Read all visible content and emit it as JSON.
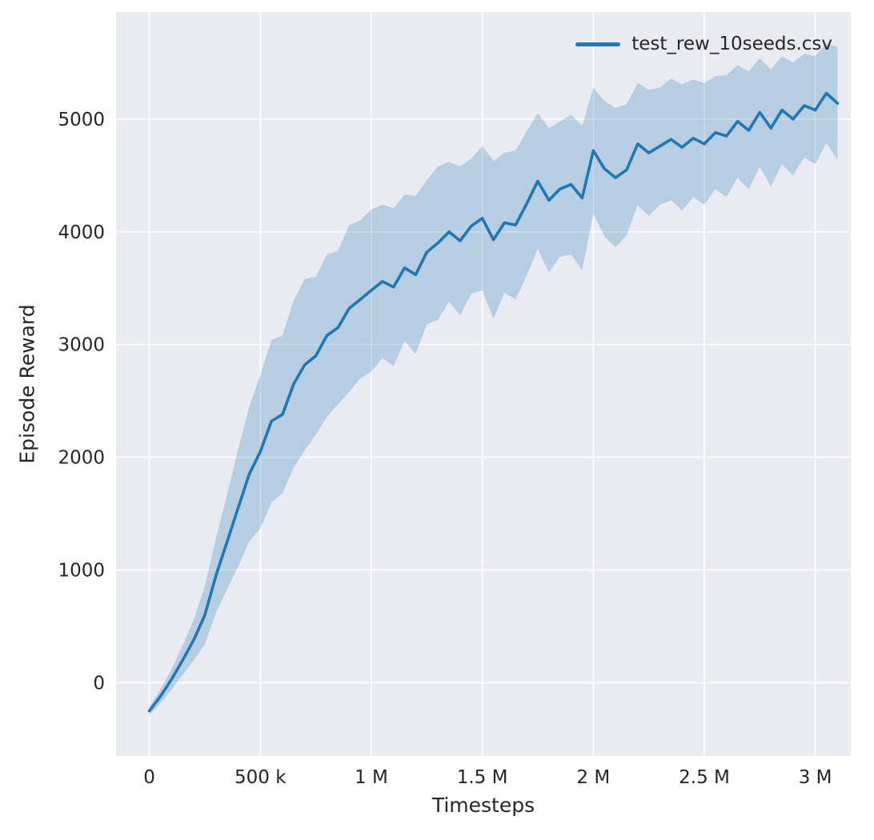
{
  "chart_data": {
    "type": "line",
    "title": "",
    "xlabel": "Timesteps",
    "ylabel": "Episode Reward",
    "grid": true,
    "legend_position": "upper right",
    "xlim": [
      -150000,
      3160000
    ],
    "ylim": [
      -650,
      5950
    ],
    "x_ticks": [
      0,
      500000,
      1000000,
      1500000,
      2000000,
      2500000,
      3000000
    ],
    "x_tick_labels": [
      "0",
      "500 k",
      "1 M",
      "1.5 M",
      "2 M",
      "2.5 M",
      "3 M"
    ],
    "y_ticks": [
      0,
      1000,
      2000,
      3000,
      4000,
      5000
    ],
    "y_tick_labels": [
      "0",
      "1000",
      "2000",
      "3000",
      "4000",
      "5000"
    ],
    "style": {
      "plot_bg": "#eaeaf2",
      "grid_color": "#ffffff",
      "line_color": "#1f77b4",
      "band_opacity": 0.25,
      "tick_color": "#262626"
    },
    "x_start": 0,
    "x_step": 50000,
    "series": [
      {
        "name": "test_rew_10seeds.csv",
        "mean": [
          -250,
          -120,
          30,
          200,
          380,
          600,
          950,
          1250,
          1550,
          1850,
          2050,
          2320,
          2380,
          2650,
          2820,
          2900,
          3080,
          3150,
          3320,
          3400,
          3480,
          3560,
          3510,
          3680,
          3620,
          3820,
          3900,
          4000,
          3920,
          4050,
          4120,
          3930,
          4080,
          4060,
          4250,
          4450,
          4280,
          4380,
          4420,
          4300,
          4720,
          4560,
          4480,
          4550,
          4780,
          4700,
          4760,
          4820,
          4750,
          4830,
          4780,
          4880,
          4850,
          4980,
          4900,
          5060,
          4920,
          5080,
          5000,
          5120,
          5080,
          5230,
          5140
        ],
        "spread": [
          40,
          60,
          90,
          130,
          180,
          260,
          330,
          420,
          520,
          600,
          680,
          720,
          700,
          740,
          760,
          700,
          720,
          680,
          740,
          700,
          720,
          680,
          700,
          650,
          700,
          640,
          680,
          620,
          660,
          600,
          640,
          700,
          620,
          660,
          640,
          600,
          640,
          600,
          620,
          640,
          560,
          600,
          620,
          580,
          540,
          560,
          520,
          540,
          560,
          520,
          540,
          500,
          540,
          500,
          520,
          480,
          520,
          480,
          500,
          460,
          480,
          440,
          500
        ]
      }
    ]
  },
  "legend": {
    "entry_label": "test_rew_10seeds.csv"
  }
}
